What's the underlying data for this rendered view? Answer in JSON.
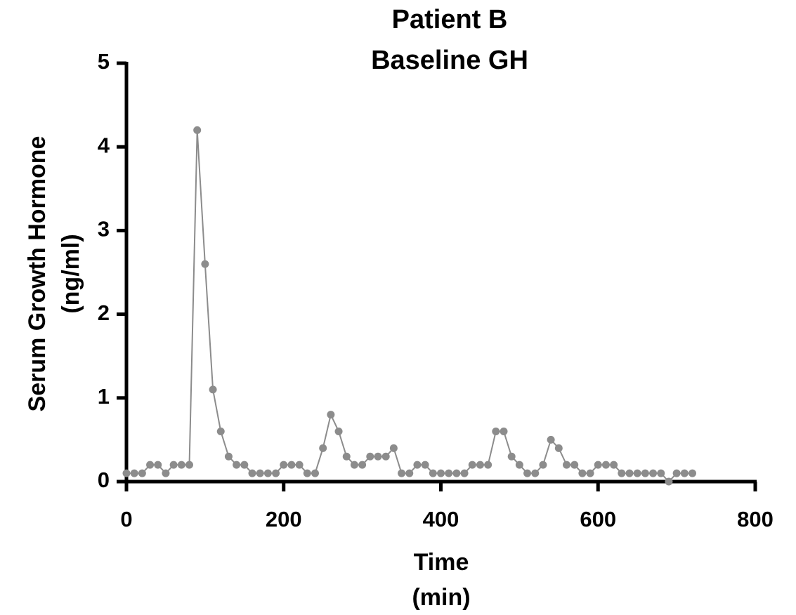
{
  "chart_data": {
    "type": "line",
    "title": [
      "Patient B",
      "Baseline GH"
    ],
    "x_label": [
      "Time",
      "(min)"
    ],
    "y_label": [
      "Serum Growth Hormone",
      "(ng/ml)"
    ],
    "x": [
      0,
      10,
      20,
      30,
      40,
      50,
      60,
      70,
      80,
      90,
      100,
      110,
      120,
      130,
      140,
      150,
      160,
      170,
      180,
      190,
      200,
      210,
      220,
      230,
      240,
      250,
      260,
      270,
      280,
      290,
      300,
      310,
      320,
      330,
      340,
      350,
      360,
      370,
      380,
      390,
      400,
      410,
      420,
      430,
      440,
      450,
      460,
      470,
      480,
      490,
      500,
      510,
      520,
      530,
      540,
      550,
      560,
      570,
      580,
      590,
      600,
      610,
      620,
      630,
      640,
      650,
      660,
      670,
      680,
      690,
      700,
      710,
      720
    ],
    "series": [
      {
        "color": "#8c8c8c",
        "values": [
          0.1,
          0.1,
          0.1,
          0.2,
          0.2,
          0.1,
          0.2,
          0.2,
          0.2,
          4.2,
          2.6,
          1.1,
          0.6,
          0.3,
          0.2,
          0.2,
          0.1,
          0.1,
          0.1,
          0.1,
          0.2,
          0.2,
          0.2,
          0.1,
          0.1,
          0.4,
          0.8,
          0.6,
          0.3,
          0.2,
          0.2,
          0.3,
          0.3,
          0.3,
          0.4,
          0.1,
          0.1,
          0.2,
          0.2,
          0.1,
          0.1,
          0.1,
          0.1,
          0.1,
          0.2,
          0.2,
          0.2,
          0.6,
          0.6,
          0.3,
          0.2,
          0.1,
          0.1,
          0.2,
          0.5,
          0.4,
          0.2,
          0.2,
          0.1,
          0.1,
          0.2,
          0.2,
          0.2,
          0.1,
          0.1,
          0.1,
          0.1,
          0.1,
          0.1,
          0.0,
          0.1,
          0.1,
          0.1
        ]
      }
    ],
    "xlim": [
      0,
      800
    ],
    "xticks": [
      0,
      200,
      400,
      600,
      800
    ],
    "ylim": [
      0,
      5
    ],
    "yticks": [
      0,
      1,
      2,
      3,
      4,
      5
    ]
  }
}
